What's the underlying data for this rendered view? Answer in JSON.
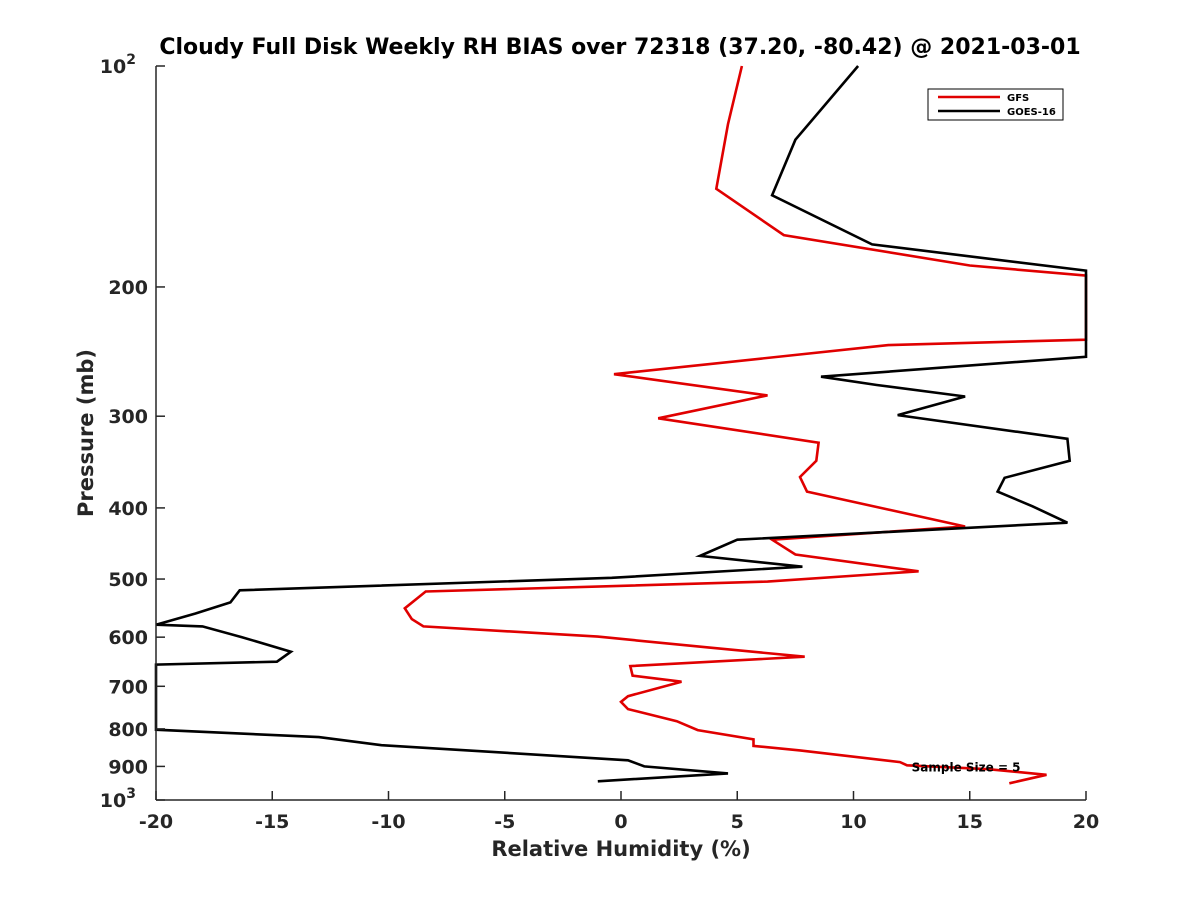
{
  "chart_data": {
    "type": "line",
    "title": "Cloudy Full Disk Weekly RH BIAS over 72318 (37.20, -80.42) @ 2021-03-01",
    "xlabel": "Relative Humidity (%)",
    "ylabel": "Pressure (mb)",
    "xlim": [
      -20,
      20
    ],
    "ylim": [
      100,
      1000
    ],
    "y_scale": "log",
    "y_reversed": true,
    "grid": false,
    "legend_position": "top-right",
    "x_ticks": [
      "-20",
      "-15",
      "-10",
      "-5",
      "0",
      "5",
      "10",
      "15",
      "20"
    ],
    "y_ticks": [
      {
        "value": 100,
        "base": "10",
        "exp": "2"
      },
      {
        "value": 200,
        "label": "200"
      },
      {
        "value": 300,
        "label": "300"
      },
      {
        "value": 400,
        "label": "400"
      },
      {
        "value": 500,
        "label": "500"
      },
      {
        "value": 600,
        "label": "600"
      },
      {
        "value": 700,
        "label": "700"
      },
      {
        "value": 800,
        "label": "800"
      },
      {
        "value": 900,
        "label": "900"
      },
      {
        "value": 1000,
        "base": "10",
        "exp": "3"
      }
    ],
    "annotation": {
      "text": "Sample Size = 5",
      "x": 12.5,
      "y": 900
    },
    "series": [
      {
        "name": "GFS",
        "color": "#e00000",
        "points": [
          [
            5.2,
            100
          ],
          [
            4.6,
            120
          ],
          [
            4.1,
            147
          ],
          [
            7.0,
            170
          ],
          [
            15.0,
            187
          ],
          [
            20.0,
            193
          ],
          [
            20.0,
            236
          ],
          [
            11.5,
            240
          ],
          [
            -0.3,
            263
          ],
          [
            6.3,
            281
          ],
          [
            1.6,
            302
          ],
          [
            8.5,
            326
          ],
          [
            8.4,
            345
          ],
          [
            7.7,
            363
          ],
          [
            8.0,
            380
          ],
          [
            14.8,
            424
          ],
          [
            6.5,
            442
          ],
          [
            7.5,
            463
          ],
          [
            12.8,
            488
          ],
          [
            6.3,
            504
          ],
          [
            -8.4,
            520
          ],
          [
            -9.3,
            548
          ],
          [
            -9.0,
            567
          ],
          [
            -8.5,
            580
          ],
          [
            -1.0,
            599
          ],
          [
            3.8,
            620
          ],
          [
            7.9,
            638
          ],
          [
            0.4,
            657
          ],
          [
            0.5,
            677
          ],
          [
            2.6,
            690
          ],
          [
            0.3,
            722
          ],
          [
            0.0,
            735
          ],
          [
            0.3,
            752
          ],
          [
            2.4,
            781
          ],
          [
            3.3,
            803
          ],
          [
            5.7,
            827
          ],
          [
            5.7,
            844
          ],
          [
            7.7,
            856
          ],
          [
            12.0,
            888
          ],
          [
            12.3,
            897
          ],
          [
            15.8,
            908
          ],
          [
            18.3,
            924
          ],
          [
            16.7,
            949
          ]
        ]
      },
      {
        "name": "GOES-16",
        "color": "#000000",
        "points": [
          [
            10.2,
            100
          ],
          [
            7.5,
            126
          ],
          [
            6.5,
            150
          ],
          [
            10.8,
            175
          ],
          [
            20.0,
            190
          ],
          [
            20.0,
            249
          ],
          [
            8.6,
            265
          ],
          [
            11.0,
            272
          ],
          [
            14.8,
            282
          ],
          [
            11.9,
            299
          ],
          [
            19.2,
            322
          ],
          [
            19.3,
            345
          ],
          [
            16.5,
            364
          ],
          [
            16.2,
            380
          ],
          [
            17.7,
            398
          ],
          [
            19.2,
            419
          ],
          [
            5.0,
            442
          ],
          [
            3.4,
            465
          ],
          [
            7.8,
            481
          ],
          [
            -0.4,
            498
          ],
          [
            -16.4,
            518
          ],
          [
            -16.8,
            538
          ],
          [
            -18.3,
            557
          ],
          [
            -20.0,
            577
          ],
          [
            -18.0,
            580
          ],
          [
            -16.3,
            600
          ],
          [
            -14.2,
            628
          ],
          [
            -14.8,
            648
          ],
          [
            -20.0,
            654
          ],
          [
            -20.0,
            802
          ],
          [
            -13.0,
            821
          ],
          [
            -10.3,
            842
          ],
          [
            -5.0,
            862
          ],
          [
            0.3,
            883
          ],
          [
            1.0,
            900
          ],
          [
            4.6,
            920
          ],
          [
            -1.0,
            943
          ]
        ]
      }
    ]
  }
}
